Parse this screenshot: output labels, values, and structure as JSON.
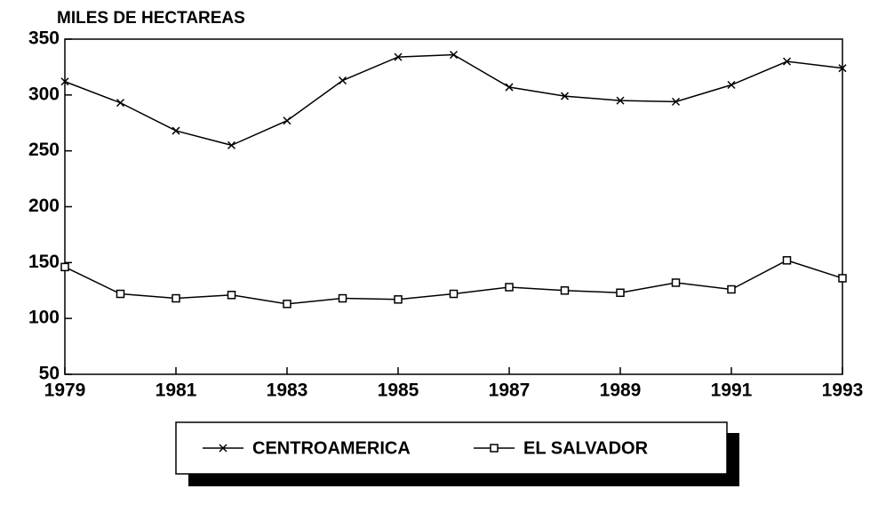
{
  "chart_data": {
    "type": "line",
    "y_axis_label": "MILES DE HECTAREAS",
    "x": [
      1979,
      1980,
      1981,
      1982,
      1983,
      1984,
      1985,
      1986,
      1987,
      1988,
      1989,
      1990,
      1991,
      1992,
      1993
    ],
    "series": [
      {
        "name": "CENTROAMERICA",
        "color": "#000000",
        "marker": "x",
        "values": [
          312,
          293,
          268,
          255,
          277,
          313,
          334,
          336,
          307,
          299,
          295,
          294,
          309,
          330,
          324
        ]
      },
      {
        "name": "EL SALVADOR",
        "color": "#000000",
        "marker": "square",
        "values": [
          146,
          122,
          118,
          121,
          113,
          118,
          117,
          122,
          128,
          125,
          123,
          132,
          126,
          152,
          136
        ]
      }
    ],
    "xlim": [
      1979,
      1993
    ],
    "xticks": [
      1979,
      1981,
      1983,
      1985,
      1987,
      1989,
      1991,
      1993
    ],
    "ylim": [
      50,
      350
    ],
    "yticks": [
      50,
      100,
      150,
      200,
      250,
      300,
      350
    ],
    "grid": false,
    "legend": "bottom"
  }
}
